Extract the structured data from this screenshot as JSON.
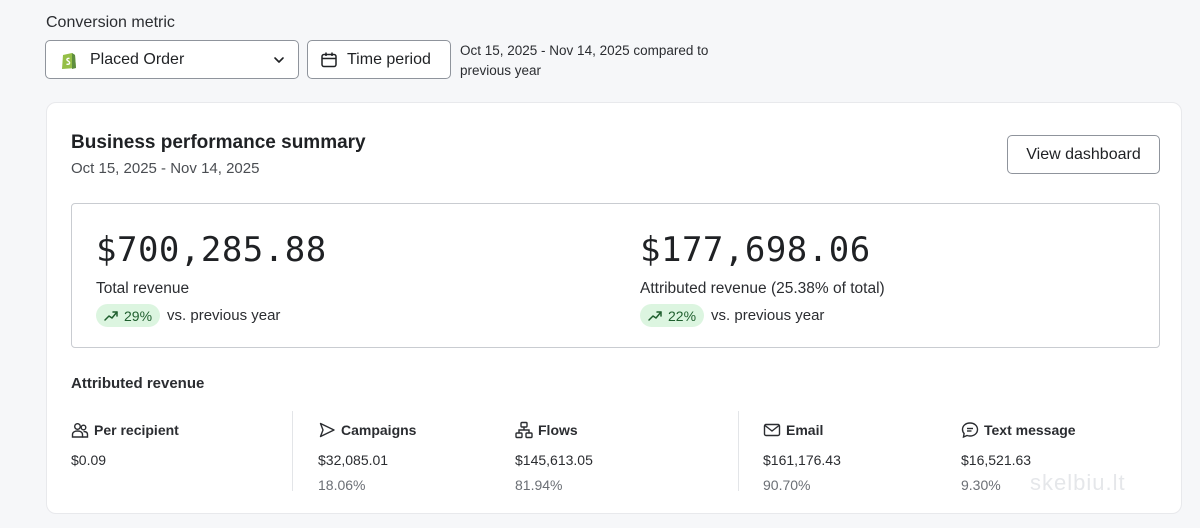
{
  "header": {
    "metric_label": "Conversion metric",
    "metric_value": "Placed Order",
    "time_period_label": "Time period",
    "period_note": "Oct 15, 2025 - Nov 14, 2025 compared to previous year"
  },
  "summary": {
    "title": "Business performance summary",
    "date_range": "Oct 15, 2025 - Nov 14, 2025",
    "view_button": "View dashboard",
    "total": {
      "value": "$700,285.88",
      "label": "Total revenue",
      "change": "29%",
      "comparison": "vs. previous year"
    },
    "attributed": {
      "value": "$177,698.06",
      "label": "Attributed revenue (25.38% of total)",
      "change": "22%",
      "comparison": "vs. previous year"
    }
  },
  "attributed_revenue": {
    "title": "Attributed revenue",
    "columns": [
      {
        "label": "Per recipient",
        "icon": "users-icon",
        "value": "$0.09",
        "pct": ""
      },
      {
        "label": "Campaigns",
        "icon": "send-icon",
        "value": "$32,085.01",
        "pct": "18.06%"
      },
      {
        "label": "Flows",
        "icon": "flow-icon",
        "value": "$145,613.05",
        "pct": "81.94%"
      },
      {
        "label": "Email",
        "icon": "mail-icon",
        "value": "$161,176.43",
        "pct": "90.70%"
      },
      {
        "label": "Text message",
        "icon": "message-icon",
        "value": "$16,521.63",
        "pct": "9.30%"
      }
    ]
  },
  "colors": {
    "accent_pill_bg": "#dcf5e0",
    "accent_pill_text": "#1f5f2e",
    "border": "#8f949c"
  },
  "watermark": "skelbiu.lt"
}
